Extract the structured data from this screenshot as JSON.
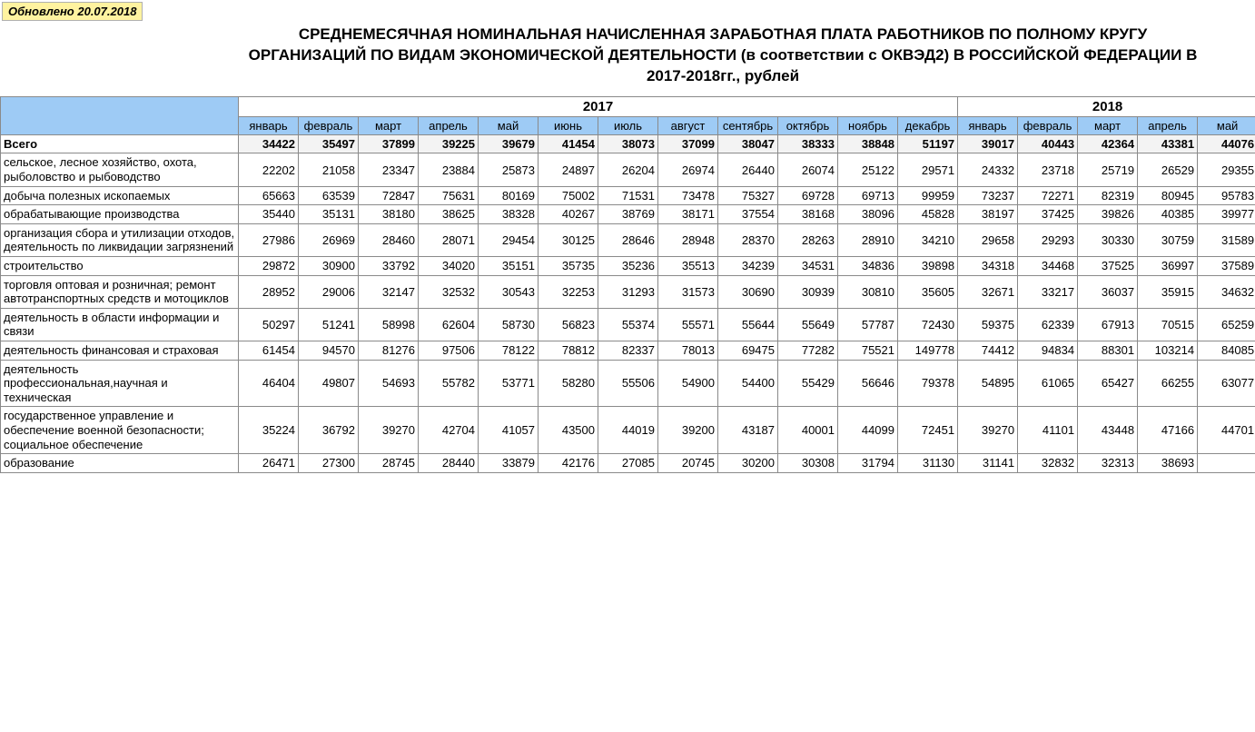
{
  "updated_label": "Обновлено 20.07.2018",
  "title": "СРЕДНЕМЕСЯЧНАЯ НОМИНАЛЬНАЯ НАЧИСЛЕННАЯ ЗАРАБОТНАЯ ПЛАТА РАБОТНИКОВ ПО ПОЛНОМУ КРУГУ ОРГАНИЗАЦИЙ ПО ВИДАМ ЭКОНОМИЧЕСКОЙ ДЕЯТЕЛЬНОСТИ (в соответствии с ОКВЭД2) В РОССИЙСКОЙ ФЕДЕРАЦИИ В 2017-2018гг., рублей",
  "colors": {
    "header_bg": "#9ecbf5",
    "update_bg": "#fff3a0",
    "total_bg": "#f3f3f3",
    "border": "#8a8a8a"
  },
  "years": [
    {
      "label": "2017",
      "span": 12
    },
    {
      "label": "2018",
      "span": 5
    }
  ],
  "months": [
    "январь",
    "февраль",
    "март",
    "апрель",
    "май",
    "июнь",
    "июль",
    "август",
    "сентябрь",
    "октябрь",
    "ноябрь",
    "декабрь",
    "январь",
    "февраль",
    "март",
    "апрель",
    "май"
  ],
  "rows": [
    {
      "label": "Всего",
      "total": true,
      "values": [
        34422,
        35497,
        37899,
        39225,
        39679,
        41454,
        38073,
        37099,
        38047,
        38333,
        38848,
        51197,
        39017,
        40443,
        42364,
        43381,
        44076
      ]
    },
    {
      "label": " сельское, лесное хозяйство, охота, рыболовство и рыбоводство",
      "values": [
        22202,
        21058,
        23347,
        23884,
        25873,
        24897,
        26204,
        26974,
        26440,
        26074,
        25122,
        29571,
        24332,
        23718,
        25719,
        26529,
        29355
      ]
    },
    {
      "label": "  добыча полезных ископаемых",
      "values": [
        65663,
        63539,
        72847,
        75631,
        80169,
        75002,
        71531,
        73478,
        75327,
        69728,
        69713,
        99959,
        73237,
        72271,
        82319,
        80945,
        95783
      ]
    },
    {
      "label": "  обрабатывающие производства",
      "values": [
        35440,
        35131,
        38180,
        38625,
        38328,
        40267,
        38769,
        38171,
        37554,
        38168,
        38096,
        45828,
        38197,
        37425,
        39826,
        40385,
        39977
      ]
    },
    {
      "label": "организация сбора и утилизации отходов, деятельность по ликвидации загрязнений",
      "values": [
        27986,
        26969,
        28460,
        28071,
        29454,
        30125,
        28646,
        28948,
        28370,
        28263,
        28910,
        34210,
        29658,
        29293,
        30330,
        30759,
        31589
      ]
    },
    {
      "label": "строительство",
      "values": [
        29872,
        30900,
        33792,
        34020,
        35151,
        35735,
        35236,
        35513,
        34239,
        34531,
        34836,
        39898,
        34318,
        34468,
        37525,
        36997,
        37589
      ]
    },
    {
      "label": "торговля оптовая и розничная; ремонт автотранспортных средств и мотоциклов",
      "values": [
        28952,
        29006,
        32147,
        32532,
        30543,
        32253,
        31293,
        31573,
        30690,
        30939,
        30810,
        35605,
        32671,
        33217,
        36037,
        35915,
        34632
      ]
    },
    {
      "label": "деятельность в области информации и связи",
      "values": [
        50297,
        51241,
        58998,
        62604,
        58730,
        56823,
        55374,
        55571,
        55644,
        55649,
        57787,
        72430,
        59375,
        62339,
        67913,
        70515,
        65259
      ]
    },
    {
      "label": "деятельность финансовая и страховая",
      "values": [
        61454,
        94570,
        81276,
        97506,
        78122,
        78812,
        82337,
        78013,
        69475,
        77282,
        75521,
        149778,
        74412,
        94834,
        88301,
        103214,
        84085
      ]
    },
    {
      "label": "деятельность профессиональная,научная и техническая",
      "values": [
        46404,
        49807,
        54693,
        55782,
        53771,
        58280,
        55506,
        54900,
        54400,
        55429,
        56646,
        79378,
        54895,
        61065,
        65427,
        66255,
        63077
      ]
    },
    {
      "label": "государственное управление и обеспечение военной безопасности; социальное обеспечение",
      "values": [
        35224,
        36792,
        39270,
        42704,
        41057,
        43500,
        44019,
        39200,
        43187,
        40001,
        44099,
        72451,
        39270,
        41101,
        43448,
        47166,
        44701
      ]
    },
    {
      "label": "образование",
      "values": [
        26471,
        27300,
        28745,
        28440,
        33879,
        42176,
        27085,
        20745,
        30200,
        30308,
        31794,
        31130,
        31141,
        32832,
        32313,
        38693,
        null
      ]
    }
  ]
}
